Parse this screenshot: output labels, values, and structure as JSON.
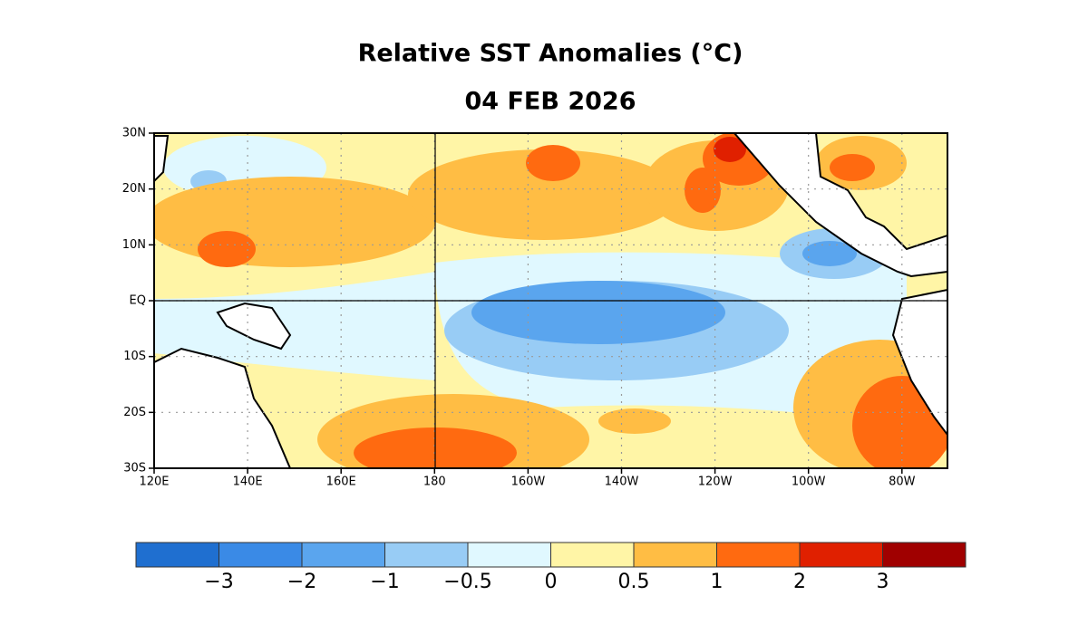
{
  "title": "Relative SST Anomalies (°C)",
  "date": "04 FEB 2026",
  "map": {
    "lat_labels": [
      "30N",
      "20N",
      "10N",
      "EQ",
      "10S",
      "20S",
      "30S"
    ],
    "lon_labels": [
      "120E",
      "140E",
      "160E",
      "180",
      "160W",
      "140W",
      "120W",
      "100W",
      "80W"
    ]
  },
  "colorbar": {
    "colors": [
      "#1f6fd0",
      "#3a8ae6",
      "#5aa5ee",
      "#98ccf5",
      "#e0f8ff",
      "#fff5a6",
      "#ffbd44",
      "#ff6a10",
      "#e02000",
      "#a00000"
    ],
    "labels": [
      "−3",
      "−2",
      "−1",
      "−0.5",
      "0",
      "0.5",
      "1",
      "2",
      "3"
    ]
  }
}
